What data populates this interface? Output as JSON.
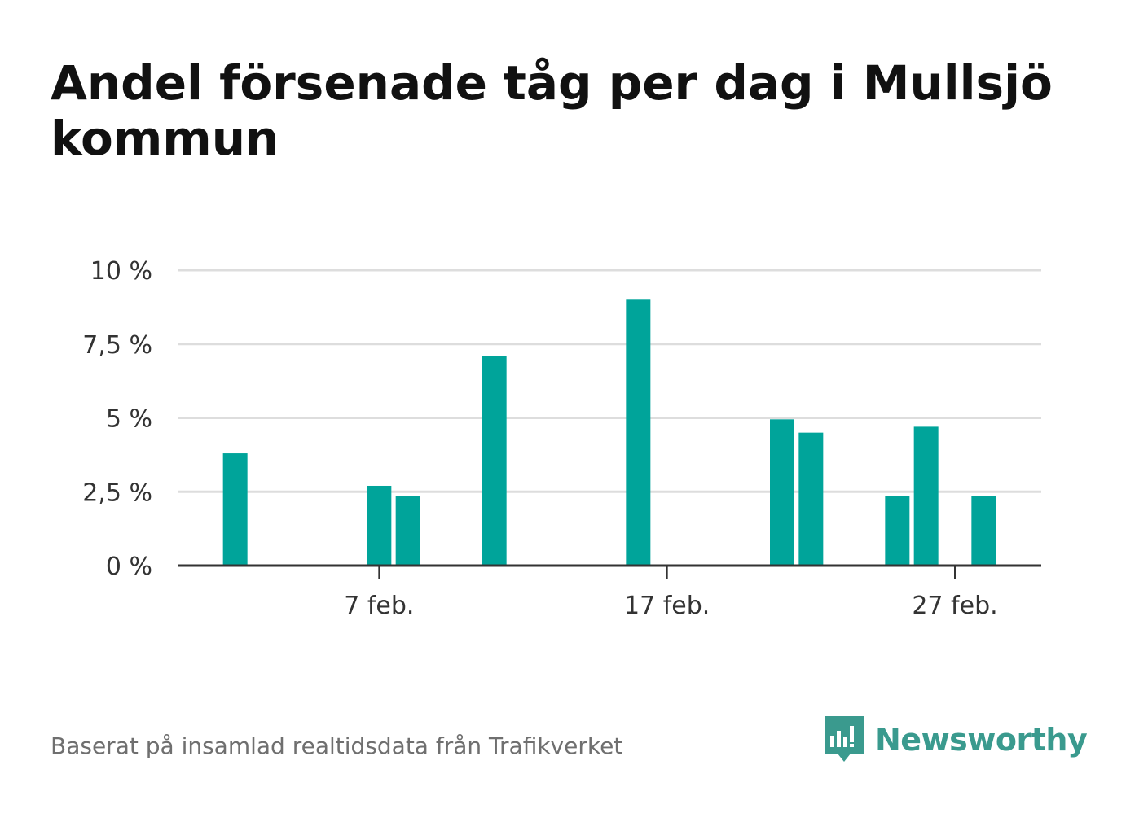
{
  "title": "Andel försenade tåg per dag i Mullsjö kommun",
  "source": "Baserat på insamlad realtidsdata från Trafikverket",
  "brand": {
    "name": "Newsworthy",
    "icon": "newsworthy-logo-icon",
    "color": "#3a9a8e"
  },
  "chart_data": {
    "type": "bar",
    "title": "Andel försenade tåg per dag i Mullsjö kommun",
    "xlabel": "",
    "ylabel": "",
    "x_range": [
      "2025-01-31",
      "2025-03-02"
    ],
    "x_tick_dates": [
      "2025-02-07",
      "2025-02-17",
      "2025-02-27"
    ],
    "x_tick_labels": [
      "7 feb.",
      "17 feb.",
      "27 feb."
    ],
    "ylim": [
      0,
      10
    ],
    "y_ticks": [
      0,
      2.5,
      5,
      7.5,
      10
    ],
    "y_tick_labels": [
      "0 %",
      "2,5 %",
      "5 %",
      "7,5 %",
      "10 %"
    ],
    "grid": true,
    "bar_color": "#00a49a",
    "series": [
      {
        "values": [
          {
            "x": "2025-02-02",
            "y": 3.8
          },
          {
            "x": "2025-02-07",
            "y": 2.7
          },
          {
            "x": "2025-02-08",
            "y": 2.35
          },
          {
            "x": "2025-02-11",
            "y": 7.1
          },
          {
            "x": "2025-02-16",
            "y": 9.0
          },
          {
            "x": "2025-02-21",
            "y": 4.95
          },
          {
            "x": "2025-02-22",
            "y": 4.5
          },
          {
            "x": "2025-02-25",
            "y": 2.35
          },
          {
            "x": "2025-02-26",
            "y": 4.7
          },
          {
            "x": "2025-02-28",
            "y": 2.35
          }
        ]
      }
    ]
  }
}
